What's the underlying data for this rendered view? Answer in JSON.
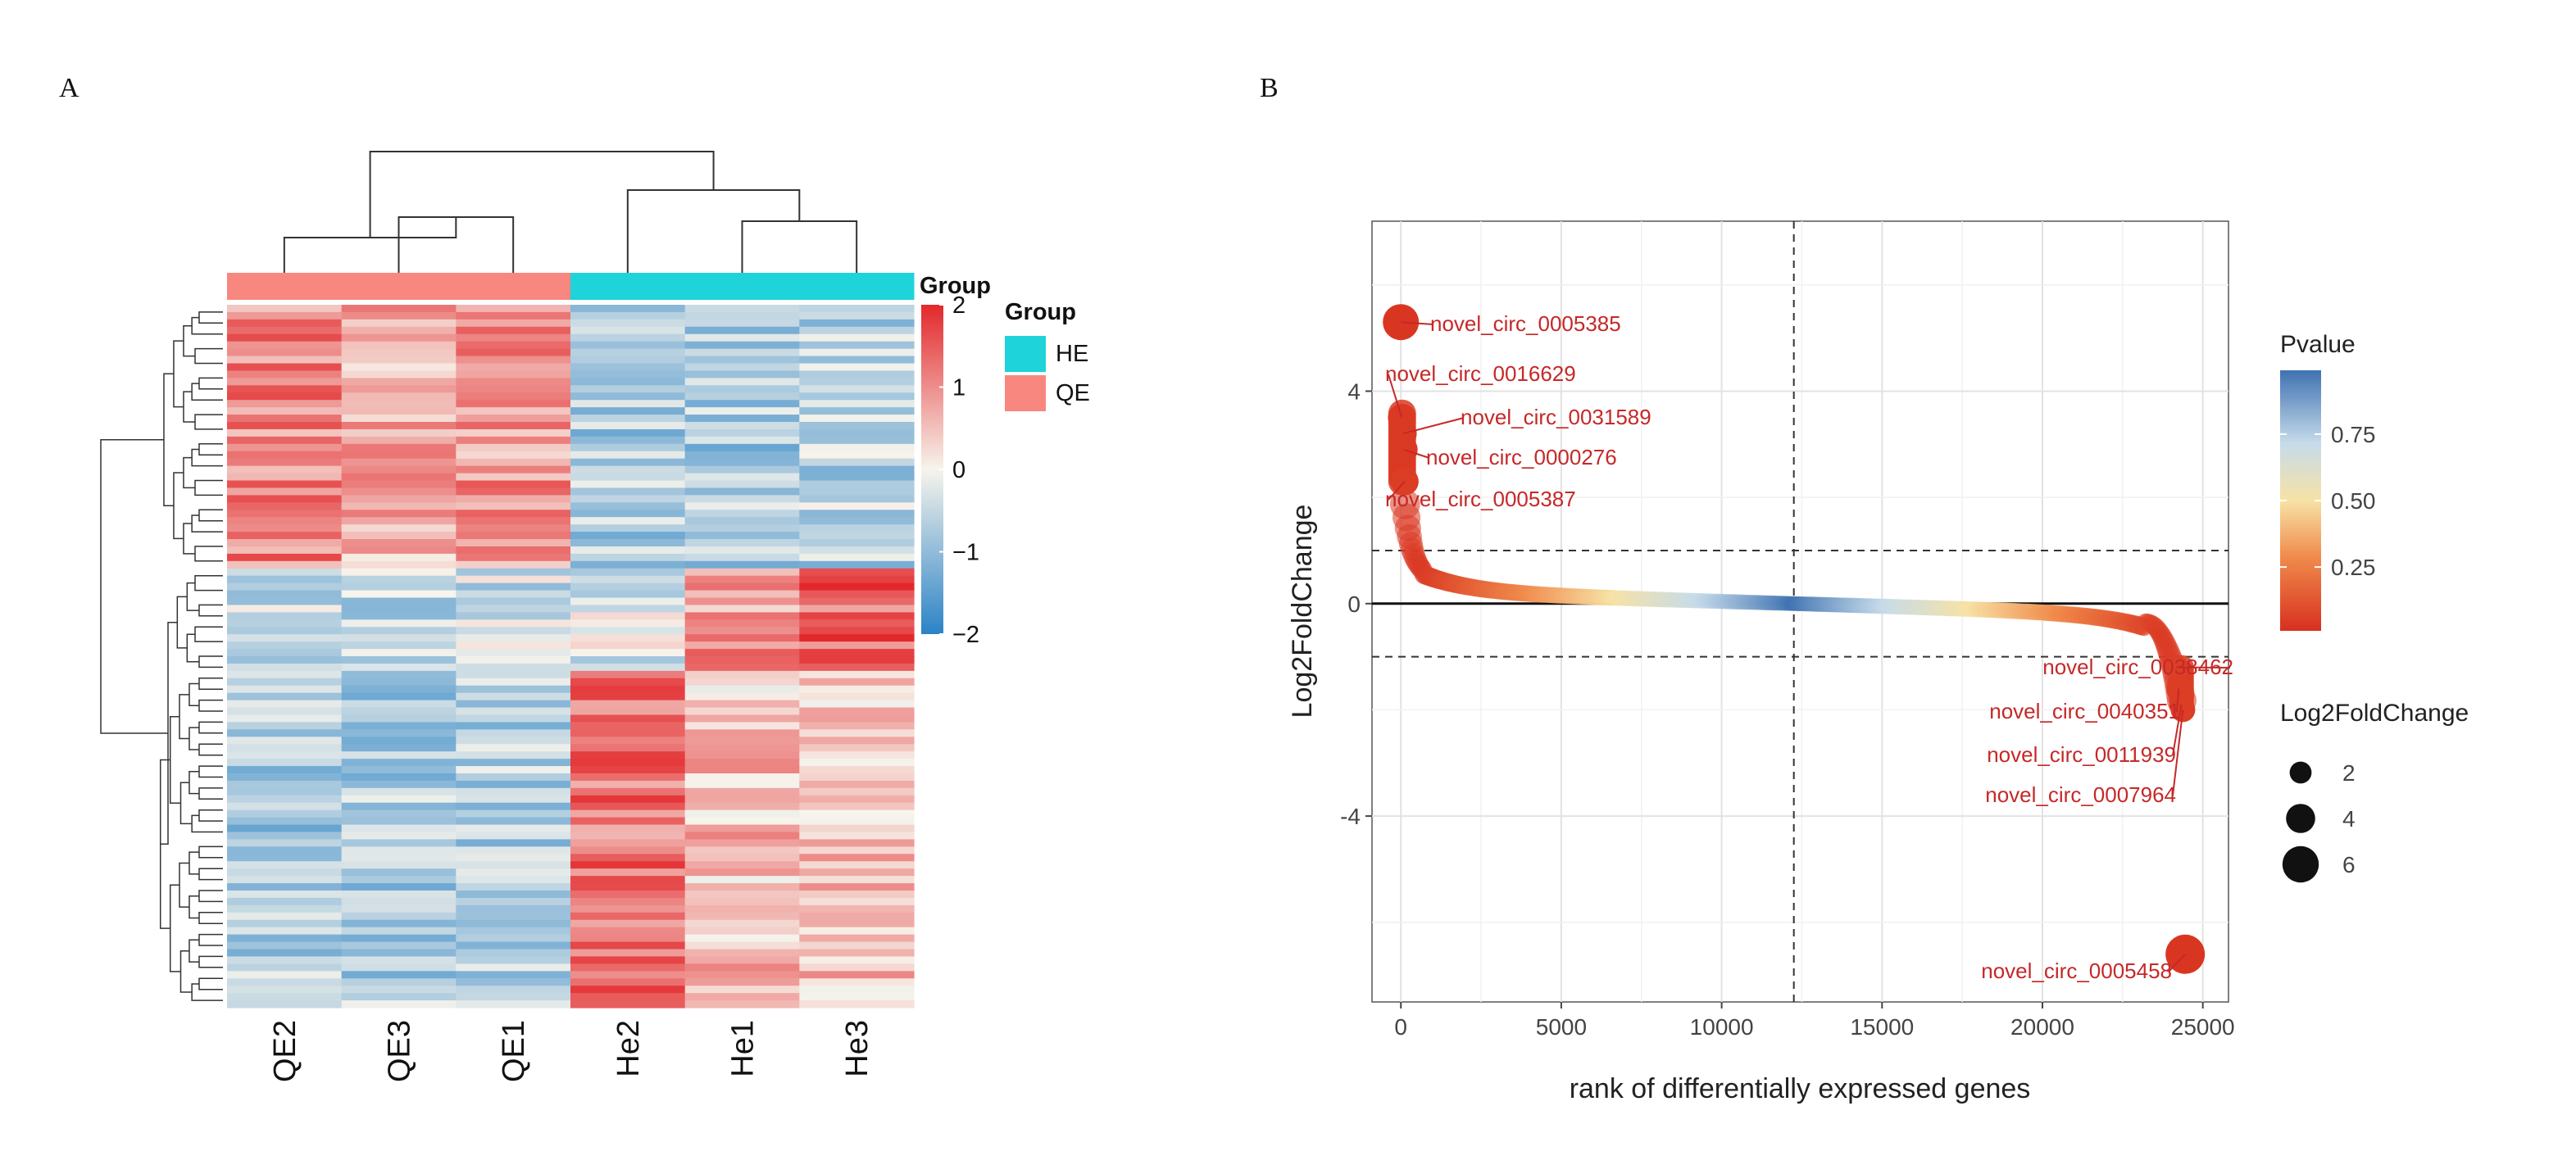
{
  "panels": {
    "a_label": "A",
    "b_label": "B"
  },
  "heatmap": {
    "samples": [
      "QE2",
      "QE3",
      "QE1",
      "He2",
      "He1",
      "He3"
    ],
    "sample_groups": [
      "QE",
      "QE",
      "QE",
      "HE",
      "HE",
      "HE"
    ],
    "group_title": "Group",
    "legend_groups": [
      {
        "label": "HE",
        "color": "#1fd3db"
      },
      {
        "label": "QE",
        "color": "#f8877f"
      }
    ],
    "colorbar_title": "Group",
    "colorbar_ticks": [
      {
        "value": 2,
        "label": "2"
      },
      {
        "value": 1,
        "label": "1"
      },
      {
        "value": 0,
        "label": "0"
      },
      {
        "value": -1,
        "label": "−1"
      },
      {
        "value": -2,
        "label": "−2"
      }
    ],
    "colors": {
      "low": "#2b83c6",
      "mid": "#f7f4ec",
      "high": "#e3282b"
    },
    "row_count": 96,
    "blocks": [
      {
        "rows": 36,
        "profile": [
          1.1,
          0.7,
          0.9,
          -0.7,
          -0.75,
          -0.6
        ]
      },
      {
        "rows": 14,
        "profile": [
          -0.55,
          -0.55,
          -0.45,
          -0.3,
          0.9,
          1.4
        ]
      },
      {
        "rows": 46,
        "profile": [
          -0.75,
          -0.7,
          -0.65,
          1.25,
          0.5,
          0.55
        ]
      }
    ]
  },
  "chart_data": {
    "type": "scatter",
    "title": "",
    "xlabel": "rank of differentially expressed genes",
    "ylabel": "Log2FoldChange",
    "xlim": [
      -900,
      25800
    ],
    "ylim": [
      -7.5,
      7.2
    ],
    "xticks": [
      0,
      5000,
      10000,
      15000,
      20000,
      25000
    ],
    "yticks": [
      4,
      0,
      -4
    ],
    "vline_x": 12250,
    "hlines_dashed": [
      1,
      -1
    ],
    "hline_solid": 0,
    "color_legend": {
      "title": "Pvalue",
      "ticks": [
        0.75,
        0.5,
        0.25
      ],
      "range": [
        0.01,
        0.99
      ]
    },
    "size_legend": {
      "title": "Log2FoldChange",
      "values": [
        2,
        4,
        6
      ]
    },
    "labeled_points": [
      {
        "name": "novel_circ_0005385",
        "x": 0,
        "y": 5.3,
        "pvalue": 0.02
      },
      {
        "name": "novel_circ_0016629",
        "x": 30,
        "y": 3.5,
        "pvalue": 0.03
      },
      {
        "name": "novel_circ_0031589",
        "x": 60,
        "y": 3.2,
        "pvalue": 0.03
      },
      {
        "name": "novel_circ_0000276",
        "x": 90,
        "y": 2.9,
        "pvalue": 0.03
      },
      {
        "name": "novel_circ_0005387",
        "x": 120,
        "y": 2.3,
        "pvalue": 0.04
      },
      {
        "name": "novel_circ_0038462",
        "x": 24180,
        "y": -1.2,
        "pvalue": 0.05
      },
      {
        "name": "novel_circ_0040351",
        "x": 24250,
        "y": -1.6,
        "pvalue": 0.04
      },
      {
        "name": "novel_circ_0011939",
        "x": 24330,
        "y": -1.9,
        "pvalue": 0.04
      },
      {
        "name": "novel_circ_0007964",
        "x": 24380,
        "y": -2.0,
        "pvalue": 0.04
      },
      {
        "name": "novel_circ_0005458",
        "x": 24450,
        "y": -6.6,
        "pvalue": 0.02
      }
    ]
  }
}
